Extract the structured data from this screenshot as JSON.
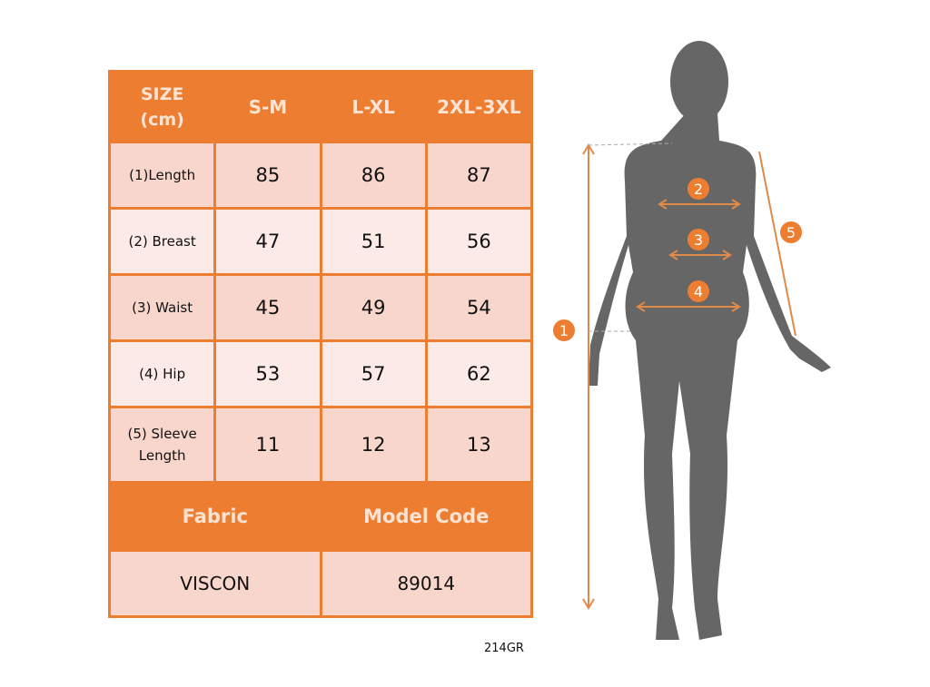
{
  "table": {
    "header": [
      "SIZE (cm)",
      "S-M",
      "L-XL",
      "2XL-3XL"
    ],
    "header_first_lines": [
      "SIZE",
      "(cm)"
    ],
    "rows": [
      {
        "label": "(1)Length",
        "values": [
          "85",
          "86",
          "87"
        ]
      },
      {
        "label": "(2) Breast",
        "values": [
          "47",
          "51",
          "56"
        ]
      },
      {
        "label": "(3) Waist",
        "values": [
          "45",
          "49",
          "54"
        ]
      },
      {
        "label": "(4) Hip",
        "values": [
          "53",
          "57",
          "62"
        ]
      },
      {
        "label_lines": [
          "(5) Sleeve",
          "Length"
        ],
        "values": [
          "11",
          "12",
          "13"
        ]
      }
    ],
    "fabric_label": "Fabric",
    "model_code_label": "Model Code",
    "fabric_value": "VISCON",
    "model_code_value": "89014"
  },
  "product_code": "214GR",
  "figure": {
    "markers": [
      "1",
      "2",
      "3",
      "4",
      "5"
    ]
  },
  "colors": {
    "accent": "#ed7d31",
    "row_dark": "#f8d6cc",
    "row_light": "#fbeae5",
    "silhouette": "#666666"
  }
}
